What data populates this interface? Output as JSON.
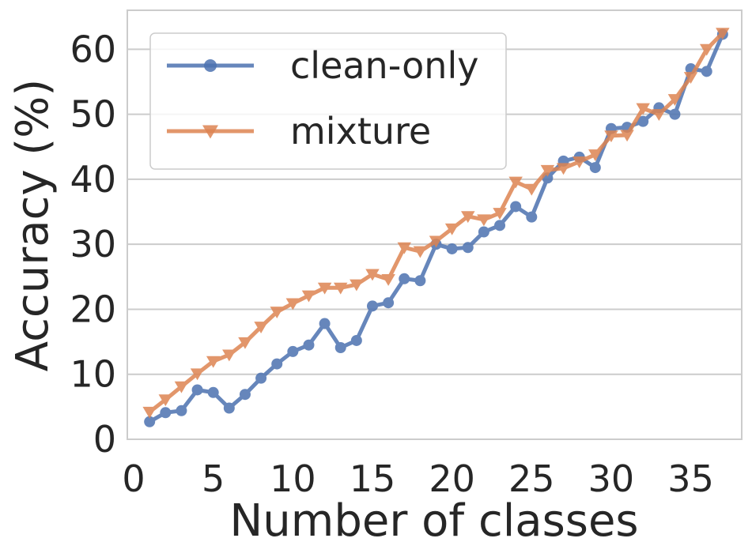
{
  "chart_data": {
    "type": "line",
    "title": "",
    "xlabel": "Number of classes",
    "ylabel": "Accuracy (%)",
    "xlim": [
      -0.4,
      38.2
    ],
    "ylim": [
      0,
      66
    ],
    "xticks": [
      0,
      5,
      10,
      15,
      20,
      25,
      30,
      35
    ],
    "yticks": [
      0,
      10,
      20,
      30,
      40,
      50,
      60
    ],
    "grid": "horizontal",
    "legend_position": "top-left",
    "x": [
      1,
      2,
      3,
      4,
      5,
      6,
      7,
      8,
      9,
      10,
      11,
      12,
      13,
      14,
      15,
      16,
      17,
      18,
      19,
      20,
      21,
      22,
      23,
      24,
      25,
      26,
      27,
      28,
      29,
      30,
      31,
      32,
      33,
      34,
      35,
      36,
      37
    ],
    "series": [
      {
        "name": "clean-only",
        "color": "#4c72b0",
        "marker": "circle",
        "values": [
          2.7,
          4.1,
          4.4,
          7.6,
          7.2,
          4.8,
          6.9,
          9.4,
          11.6,
          13.5,
          14.5,
          17.8,
          14.1,
          15.2,
          20.5,
          21.0,
          24.7,
          24.4,
          30.0,
          29.3,
          29.5,
          31.9,
          32.9,
          35.8,
          34.2,
          40.2,
          42.8,
          43.4,
          41.8,
          47.8,
          48.0,
          48.9,
          51.0,
          50.0,
          57.0,
          56.6,
          62.3
        ],
        "opacity": 0.85
      },
      {
        "name": "mixture",
        "color": "#dd8452",
        "marker": "triangle-down",
        "values": [
          4.2,
          6.1,
          8.1,
          10.1,
          12.0,
          13.0,
          14.9,
          17.3,
          19.6,
          20.9,
          22.1,
          23.3,
          23.3,
          23.8,
          25.4,
          24.6,
          29.5,
          28.9,
          30.5,
          32.4,
          34.3,
          33.8,
          34.8,
          39.6,
          38.5,
          41.4,
          41.7,
          42.7,
          43.8,
          46.7,
          46.8,
          50.9,
          50.0,
          52.3,
          55.7,
          60.0,
          62.5
        ],
        "opacity": 0.85
      }
    ]
  }
}
